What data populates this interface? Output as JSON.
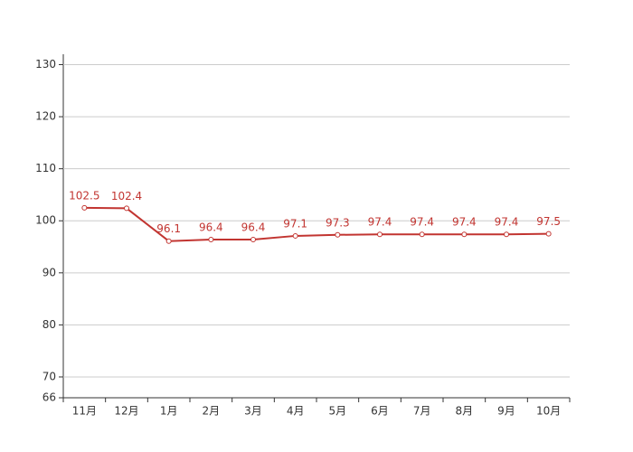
{
  "chart_data": {
    "type": "line",
    "categories": [
      "11月",
      "12月",
      "1月",
      "2月",
      "3月",
      "4月",
      "5月",
      "6月",
      "7月",
      "8月",
      "9月",
      "10月"
    ],
    "values": [
      102.5,
      102.4,
      96.1,
      96.4,
      96.4,
      97.1,
      97.3,
      97.4,
      97.4,
      97.4,
      97.4,
      97.5
    ],
    "color": "#c23531",
    "ylim": [
      66,
      132
    ],
    "yticks": [
      66,
      70,
      80,
      90,
      100,
      110,
      120,
      130
    ],
    "grid": true
  }
}
